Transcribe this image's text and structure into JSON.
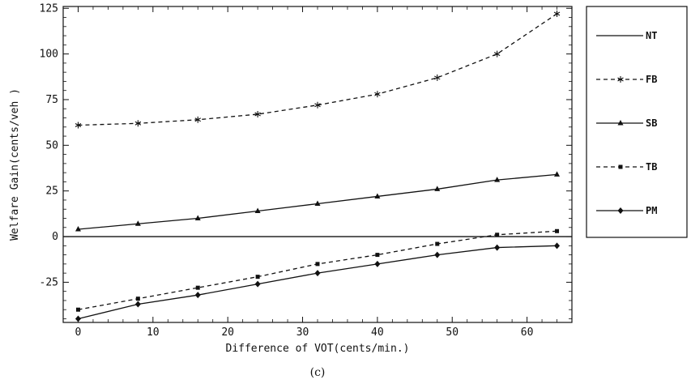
{
  "chart_data": {
    "type": "line",
    "title": "",
    "xlabel": "Difference of VOT(cents/min.)",
    "ylabel": "Welfare Gain(cents/veh )",
    "caption": "(c)",
    "xlim": [
      -2,
      66
    ],
    "ylim": [
      -47,
      126
    ],
    "xticks": [
      0,
      10,
      20,
      30,
      40,
      50,
      60
    ],
    "yticks": [
      -25,
      0,
      25,
      50,
      75,
      100,
      125
    ],
    "grid": false,
    "legend_position": "right",
    "x": [
      0,
      8,
      16,
      24,
      32,
      40,
      48,
      56,
      64
    ],
    "series": [
      {
        "name": "NT",
        "style": "solid",
        "marker": "none",
        "values": [
          0,
          0,
          0,
          0,
          0,
          0,
          0,
          0,
          0
        ]
      },
      {
        "name": "FB",
        "style": "dashed",
        "marker": "star",
        "values": [
          61,
          62,
          64,
          67,
          72,
          78,
          87,
          100,
          122
        ]
      },
      {
        "name": "SB",
        "style": "solid",
        "marker": "triangle",
        "values": [
          4,
          7,
          10,
          14,
          18,
          22,
          26,
          31,
          34
        ]
      },
      {
        "name": "TB",
        "style": "dashed",
        "marker": "square",
        "values": [
          -40,
          -34,
          -28,
          -22,
          -15,
          -10,
          -4,
          1,
          3
        ]
      },
      {
        "name": "PM",
        "style": "solid",
        "marker": "diamond",
        "values": [
          -45,
          -37,
          -32,
          -26,
          -20,
          -15,
          -10,
          -6,
          -5
        ]
      }
    ]
  }
}
